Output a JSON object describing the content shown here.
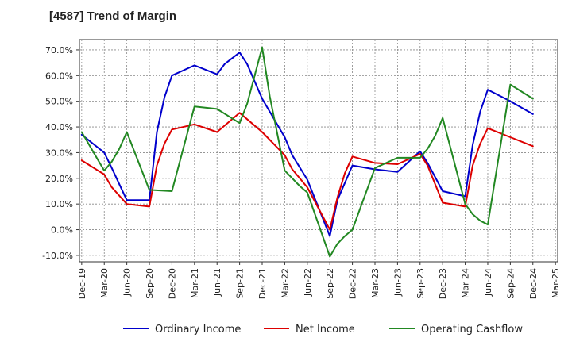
{
  "title": "[4587]  Trend of Margin",
  "chart_data": {
    "type": "line",
    "title": "[4587]  Trend of Margin",
    "xlabel": "",
    "ylabel": "",
    "x_ticks": [
      "Dec-19",
      "Mar-20",
      "Jun-20",
      "Sep-20",
      "Dec-20",
      "Mar-21",
      "Jun-21",
      "Sep-21",
      "Dec-21",
      "Mar-22",
      "Jun-22",
      "Sep-22",
      "Dec-22",
      "Mar-23",
      "Jun-23",
      "Sep-23",
      "Dec-23",
      "Mar-24",
      "Jun-24",
      "Sep-24",
      "Dec-24",
      "Mar-25"
    ],
    "y_ticks": [
      "70.0%",
      "60.0%",
      "50.0%",
      "40.0%",
      "30.0%",
      "20.0%",
      "10.0%",
      "0.0%",
      "-10.0%"
    ],
    "y_tick_values": [
      70,
      60,
      50,
      40,
      30,
      20,
      10,
      0,
      -10
    ],
    "ylim": [
      -12.5,
      74
    ],
    "grid": true,
    "legend_position": "bottom",
    "series": [
      {
        "name": "Ordinary Income",
        "color": "#0000cc",
        "x": [
          "Dec-19",
          "Mar-20",
          "Apr-20",
          "Jun-20",
          "Sep-20",
          "Oct-20",
          "Nov-20",
          "Dec-20",
          "Mar-21",
          "Jun-21",
          "Jul-21",
          "Sep-21",
          "Oct-21",
          "Dec-21",
          "Mar-22",
          "Apr-22",
          "Jun-22",
          "Sep-22",
          "Oct-22",
          "Dec-22",
          "Mar-23",
          "Jun-23",
          "Sep-23",
          "Oct-23",
          "Dec-23",
          "Mar-24",
          "Apr-24",
          "May-24",
          "Jun-24",
          "Sep-24",
          "Dec-24"
        ],
        "values": [
          37,
          30,
          24,
          11.5,
          11.5,
          38,
          51.5,
          60,
          64,
          60.5,
          64.5,
          69,
          64.5,
          51,
          36,
          29,
          19.5,
          -2.5,
          11.5,
          25,
          23.5,
          22.5,
          30.5,
          26,
          15,
          13,
          33,
          46,
          54.5,
          50,
          45
        ]
      },
      {
        "name": "Net Income",
        "color": "#dd0000",
        "x": [
          "Dec-19",
          "Mar-20",
          "Apr-20",
          "Jun-20",
          "Sep-20",
          "Oct-20",
          "Nov-20",
          "Dec-20",
          "Mar-21",
          "Jun-21",
          "Sep-21",
          "Oct-21",
          "Dec-21",
          "Mar-22",
          "Apr-22",
          "Jun-22",
          "Sep-22",
          "Oct-22",
          "Nov-22",
          "Dec-22",
          "Mar-23",
          "Jun-23",
          "Sep-23",
          "Oct-23",
          "Dec-23",
          "Mar-24",
          "Apr-24",
          "May-24",
          "Jun-24",
          "Sep-24",
          "Dec-24"
        ],
        "values": [
          27,
          21.5,
          16.5,
          10,
          9,
          25,
          33.5,
          39,
          41,
          38,
          45.5,
          43,
          38,
          29,
          23.5,
          16.5,
          0,
          12.5,
          22,
          28.5,
          26,
          25.5,
          29.5,
          25,
          10.5,
          9,
          25,
          33.5,
          39.5,
          36,
          32.5
        ]
      },
      {
        "name": "Operating Cashflow",
        "color": "#228822",
        "x": [
          "Dec-19",
          "Mar-20",
          "Apr-20",
          "May-20",
          "Jun-20",
          "Sep-20",
          "Dec-20",
          "Mar-21",
          "Jun-21",
          "Sep-21",
          "Oct-21",
          "Dec-21",
          "Jan-22",
          "Mar-22",
          "Apr-22",
          "May-22",
          "Jun-22",
          "Sep-22",
          "Oct-22",
          "Nov-22",
          "Dec-22",
          "Mar-23",
          "Jun-23",
          "Sep-23",
          "Oct-23",
          "Nov-23",
          "Dec-23",
          "Mar-24",
          "Apr-24",
          "May-24",
          "Jun-24",
          "Sep-24",
          "Dec-24"
        ],
        "values": [
          38,
          23,
          26.5,
          31.5,
          38,
          15.5,
          15,
          48,
          47,
          41.5,
          49,
          71,
          52,
          23,
          20,
          17,
          14.5,
          -10.5,
          -5.5,
          -2.5,
          0,
          24,
          28,
          28,
          31.5,
          36.5,
          43.5,
          10,
          6,
          3.5,
          2,
          56.5,
          51
        ]
      }
    ]
  }
}
